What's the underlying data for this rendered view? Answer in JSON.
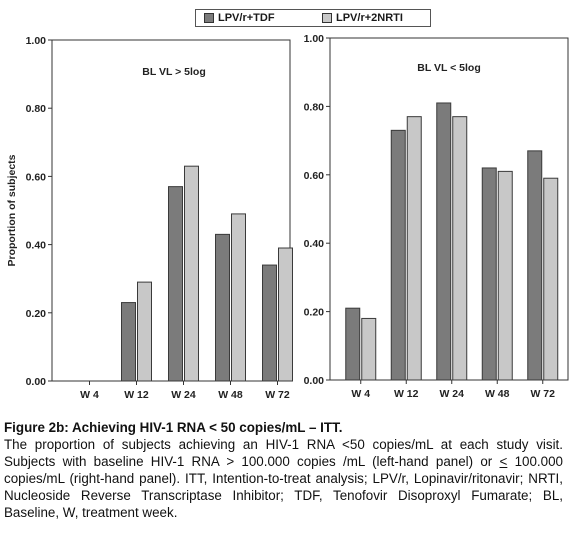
{
  "legend": {
    "items": [
      {
        "label": "LPV/r+TDF",
        "color": "#7b7b7b"
      },
      {
        "label": "LPV/r+2NRTI",
        "color": "#c8c8c8"
      }
    ]
  },
  "chart_data": [
    {
      "type": "bar",
      "annotation": "BL VL > 5log",
      "ylabel": "Proportion of subjects",
      "xlabel": "",
      "categories": [
        "W 4",
        "W 12",
        "W 24",
        "W 48",
        "W 72"
      ],
      "yticks": [
        "0.00",
        "0.20",
        "0.40",
        "0.60",
        "0.80",
        "1.00"
      ],
      "ylim": [
        0,
        1
      ],
      "grid": false,
      "legend_position": "top-center",
      "series": [
        {
          "name": "LPV/r+TDF",
          "color": "#7b7b7b",
          "values": [
            0,
            0.23,
            0.57,
            0.43,
            0.34
          ]
        },
        {
          "name": "LPV/r+2NRTI",
          "color": "#c8c8c8",
          "values": [
            0,
            0.29,
            0.63,
            0.49,
            0.39
          ]
        }
      ]
    },
    {
      "type": "bar",
      "annotation": "BL VL < 5log",
      "ylabel": "",
      "xlabel": "",
      "categories": [
        "W 4",
        "W 12",
        "W 24",
        "W 48",
        "W 72"
      ],
      "yticks": [
        "0.00",
        "0.20",
        "0.40",
        "0.60",
        "0.80",
        "1.00"
      ],
      "ylim": [
        0,
        1
      ],
      "grid": false,
      "series": [
        {
          "name": "LPV/r+TDF",
          "color": "#7b7b7b",
          "values": [
            0.21,
            0.73,
            0.81,
            0.62,
            0.67
          ]
        },
        {
          "name": "LPV/r+2NRTI",
          "color": "#c8c8c8",
          "values": [
            0.18,
            0.77,
            0.77,
            0.61,
            0.59
          ]
        }
      ]
    }
  ],
  "caption": {
    "title": "Figure 2b: Achieving HIV-1 RNA < 50 copies/mL – ITT.",
    "body_part1": "The proportion of subjects achieving an HIV-1 RNA <50 copies/mL at each study visit. Subjects with baseline HIV-1 RNA > 100.000 copies /mL (left-hand panel) or ",
    "lte": "<",
    "body_part2": " 100.000 copies/mL (right-hand panel).  ITT, Intention-to-treat analysis; LPV/r, Lopinavir/ritonavir; NRTI, Nucleoside Reverse Transcriptase Inhibitor; TDF, Tenofovir Disoproxyl Fumarate; BL, Baseline, W, treatment week."
  }
}
